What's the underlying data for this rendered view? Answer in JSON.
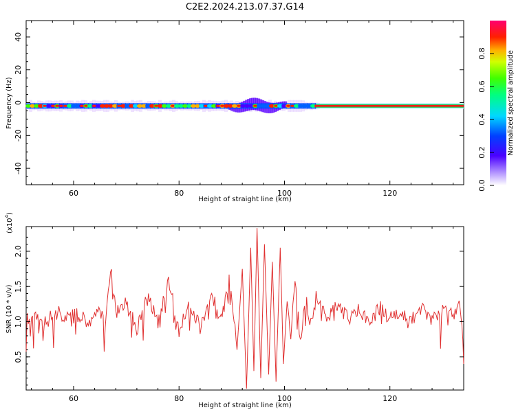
{
  "title": "C2E2.2024.213.07.37.G14",
  "colors": {
    "snr_line": "#e03030",
    "spec_band": "#2aa04a",
    "axis": "#000000"
  },
  "chart_data": [
    {
      "type": "heatmap",
      "name": "spectrogram",
      "xlabel": "Height of straight line (km)",
      "ylabel": "Frequency (Hz)",
      "xlim": [
        51,
        134
      ],
      "ylim": [
        -50,
        50
      ],
      "xticks": [
        60,
        80,
        100,
        120
      ],
      "yticks": [
        40,
        20,
        0,
        -20,
        -40
      ],
      "band_center_hz": -2,
      "band_width_hz": 4,
      "noisy_region_km": [
        51,
        106
      ],
      "disturbance_region_km": [
        89,
        100
      ],
      "colorbar": {
        "label": "Normalized spectral amplitude",
        "range": [
          0,
          1
        ],
        "ticks": [
          "0.0",
          "0.2",
          "0.4",
          "0.6",
          "0.8"
        ],
        "cmap": "gist_rainbow_r"
      }
    },
    {
      "type": "line",
      "name": "snr",
      "xlabel": "Height of straight line (km)",
      "ylabel": "SNR (10 * v/v)",
      "yscale_label": "(x10",
      "yscale_exp": "4",
      "yscale_close": ")",
      "xlim": [
        51,
        134
      ],
      "ylim": [
        0.03,
        2.35
      ],
      "xticks": [
        60,
        80,
        100,
        120
      ],
      "yticks": [
        0.5,
        1.0,
        1.5,
        2.0
      ],
      "ytick_labels": [
        "0.5",
        "1.0",
        "1.5",
        "2.0"
      ],
      "x": [
        51,
        53,
        55,
        57,
        59,
        61,
        63,
        65,
        66,
        67.2,
        68,
        70,
        72,
        74,
        76,
        78,
        80,
        82,
        84,
        86,
        88,
        89.5,
        91,
        92,
        92.8,
        93.6,
        94.2,
        94.8,
        95.5,
        96.2,
        97,
        97.7,
        98.4,
        99.2,
        99.8,
        100.5,
        101.2,
        102,
        103,
        104,
        105,
        106,
        108,
        110,
        112,
        114,
        116,
        118,
        120,
        122,
        124,
        126,
        128,
        130,
        132,
        133.5,
        134
      ],
      "y": [
        1.05,
        1.1,
        1.0,
        1.15,
        1.05,
        1.1,
        1.0,
        1.2,
        0.95,
        1.82,
        1.1,
        1.25,
        0.9,
        1.4,
        1.0,
        1.6,
        0.85,
        1.3,
        0.9,
        1.45,
        1.0,
        1.65,
        0.6,
        1.75,
        0.05,
        2.05,
        0.3,
        2.33,
        0.2,
        2.1,
        0.25,
        1.85,
        0.15,
        2.05,
        0.4,
        1.3,
        0.85,
        1.55,
        0.7,
        1.3,
        1.0,
        1.35,
        1.05,
        1.2,
        1.05,
        1.15,
        1.0,
        1.2,
        1.05,
        1.15,
        1.0,
        1.2,
        1.05,
        1.15,
        1.1,
        1.25,
        0.4
      ]
    }
  ]
}
